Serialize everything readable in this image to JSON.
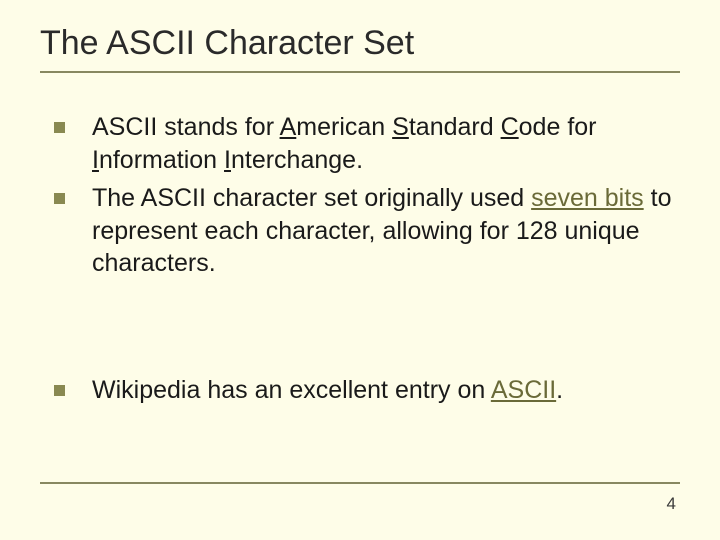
{
  "background_color": "#fefde8",
  "title": {
    "text": "The ASCII Character Set",
    "fontsize": 34,
    "color": "#2a2a2a",
    "underline_color": "#888860"
  },
  "bullets": {
    "marker_color": "#898951",
    "text_color": "#1a1a1a",
    "fontsize": 25,
    "link_color": "#6a6a38",
    "items": [
      {
        "segments": [
          {
            "t": "ASCII stands for "
          },
          {
            "t": "A",
            "u": true
          },
          {
            "t": "merican "
          },
          {
            "t": "S",
            "u": true
          },
          {
            "t": "tandard "
          },
          {
            "t": "C",
            "u": true
          },
          {
            "t": "ode for "
          },
          {
            "t": "I",
            "u": true
          },
          {
            "t": "nformation "
          },
          {
            "t": "I",
            "u": true
          },
          {
            "t": "nterchange."
          }
        ]
      },
      {
        "segments": [
          {
            "t": "The ASCII character set originally used "
          },
          {
            "t": "seven bits",
            "link": true
          },
          {
            "t": " to represent each character, allowing for 128 unique characters."
          }
        ]
      },
      {
        "gap_before": true,
        "segments": [
          {
            "t": "Wikipedia has an excellent entry on "
          },
          {
            "t": "ASCII",
            "link": true
          },
          {
            "t": "."
          }
        ]
      }
    ]
  },
  "footer": {
    "rule_color": "#888860",
    "page_number": "4",
    "page_number_fontsize": 17
  }
}
